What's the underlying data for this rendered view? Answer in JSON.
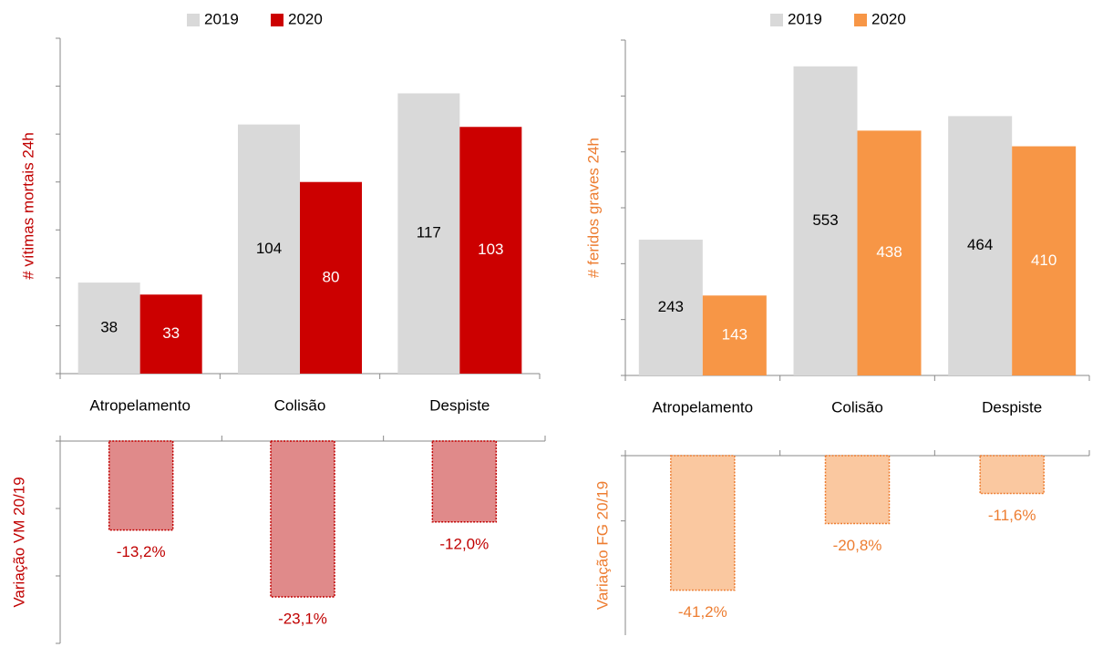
{
  "chart_data": [
    {
      "type": "bar",
      "y_label": "# vítimas mortais 24h",
      "label_color": "#c00000",
      "categories": [
        "Atropelamento",
        "Colisão",
        "Despiste"
      ],
      "series": [
        {
          "name": "2019",
          "color": "#d9d9d9",
          "text_color": "#000000",
          "values": [
            38,
            104,
            117
          ]
        },
        {
          "name": "2020",
          "color": "#cc0000",
          "text_color": "#ffffff",
          "values": [
            33,
            80,
            103
          ]
        }
      ],
      "ylim": [
        0,
        140
      ],
      "yticks": [
        0,
        20,
        40,
        60,
        80,
        100,
        120,
        140
      ],
      "legend": "top"
    },
    {
      "type": "bar",
      "y_label": "# feridos graves 24h",
      "label_color": "#ed7d31",
      "categories": [
        "Atropelamento",
        "Colisão",
        "Despiste"
      ],
      "series": [
        {
          "name": "2019",
          "color": "#d9d9d9",
          "text_color": "#000000",
          "values": [
            243,
            553,
            464
          ]
        },
        {
          "name": "2020",
          "color": "#f79646",
          "text_color": "#ffffff",
          "values": [
            143,
            438,
            410
          ]
        }
      ],
      "ylim": [
        0,
        600
      ],
      "yticks": [
        0,
        100,
        200,
        300,
        400,
        500,
        600
      ],
      "legend": "top"
    },
    {
      "type": "bar",
      "y_label": "Variação VM 20/19",
      "label_color": "#c00000",
      "categories": [
        null,
        null,
        null
      ],
      "values": [
        -13.2,
        -23.1,
        -12.0
      ],
      "value_labels": [
        "-13,2%",
        "-23,1%",
        "-12,0%"
      ],
      "color": "#e08a8a",
      "edgecolor": "#c00000",
      "ylim": [
        -30,
        0
      ],
      "yticks": [
        0,
        -10,
        -20,
        -30
      ]
    },
    {
      "type": "bar",
      "y_label": "Variação FG 20/19",
      "label_color": "#ed7d31",
      "categories": [
        null,
        null,
        null
      ],
      "values": [
        -41.2,
        -20.8,
        -11.6
      ],
      "value_labels": [
        "-41,2%",
        "-20,8%",
        "-11,6%"
      ],
      "color": "#fac8a0",
      "edgecolor": "#ed7d31",
      "ylim": [
        -55,
        0
      ],
      "yticks": [
        0,
        -20,
        -40
      ]
    }
  ]
}
